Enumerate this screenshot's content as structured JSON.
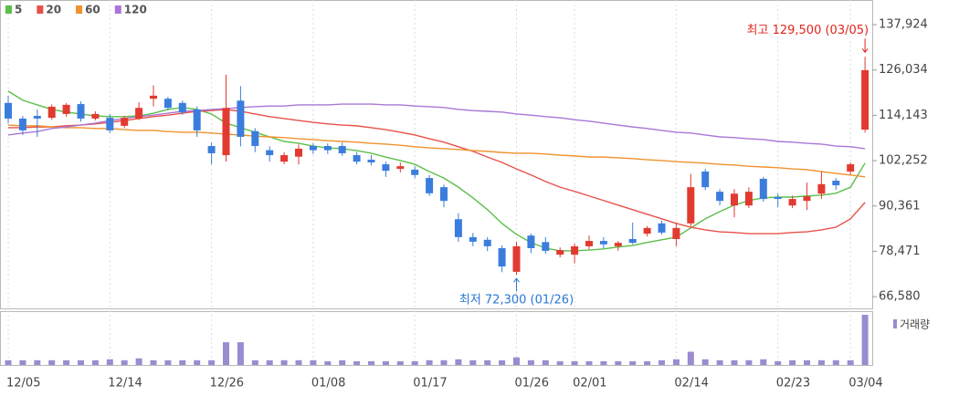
{
  "chart_data": {
    "type": "candlestick",
    "categories": [
      "12/05",
      null,
      null,
      null,
      null,
      null,
      null,
      "12/14",
      null,
      null,
      null,
      null,
      null,
      null,
      "12/26",
      null,
      null,
      null,
      null,
      null,
      null,
      "01/08",
      null,
      null,
      null,
      null,
      null,
      null,
      "01/17",
      null,
      null,
      null,
      null,
      null,
      null,
      "01/26",
      null,
      null,
      null,
      "02/01",
      null,
      null,
      null,
      null,
      null,
      null,
      "02/14",
      null,
      null,
      null,
      null,
      null,
      null,
      "02/23",
      null,
      null,
      null,
      null,
      "03/04",
      null
    ],
    "open": [
      117400,
      113300,
      114000,
      113500,
      114500,
      117100,
      113300,
      113500,
      111400,
      113300,
      118500,
      118500,
      117400,
      115700,
      106100,
      103700,
      118000,
      110000,
      105000,
      102000,
      103300,
      106100,
      106100,
      106100,
      103700,
      102500,
      101300,
      100100,
      99900,
      97700,
      95300,
      86900,
      82200,
      81500,
      79300,
      73100,
      82600,
      80900,
      77600,
      77600,
      79800,
      81200,
      79800,
      81700,
      83100,
      85800,
      81700,
      85800,
      99400,
      94100,
      90500,
      90500,
      97500,
      92700,
      90500,
      91700,
      93600,
      97000,
      99400,
      110400
    ],
    "high": [
      119300,
      114000,
      115700,
      117000,
      117400,
      117800,
      115200,
      114500,
      114000,
      117600,
      122000,
      119000,
      118000,
      116500,
      107000,
      124800,
      121800,
      110800,
      106000,
      104500,
      106500,
      106800,
      106800,
      107000,
      104500,
      103700,
      102000,
      101800,
      100800,
      98500,
      96000,
      88500,
      83300,
      82200,
      80000,
      81000,
      83100,
      82200,
      79500,
      80500,
      82600,
      82200,
      81200,
      86000,
      85100,
      86500,
      86000,
      98800,
      100100,
      94800,
      94800,
      95300,
      98000,
      93600,
      93100,
      96500,
      99400,
      97700,
      101800,
      129500
    ],
    "low": [
      112100,
      109000,
      108500,
      113000,
      113800,
      112500,
      112800,
      109500,
      110800,
      112900,
      116500,
      115500,
      114300,
      108500,
      101300,
      102000,
      106000,
      104500,
      102000,
      101300,
      101300,
      104000,
      104000,
      103500,
      101300,
      101000,
      98000,
      99100,
      97700,
      93000,
      90000,
      81000,
      79800,
      78500,
      73000,
      72300,
      78000,
      77800,
      76900,
      75300,
      79000,
      79300,
      78600,
      80300,
      82400,
      82900,
      79800,
      85000,
      94500,
      90500,
      87400,
      89800,
      91500,
      90000,
      89800,
      89300,
      92200,
      94600,
      98700,
      109600
    ],
    "close": [
      113300,
      110200,
      113300,
      116400,
      116900,
      113300,
      114500,
      110200,
      113500,
      116100,
      119300,
      116100,
      114900,
      110200,
      104200,
      116100,
      108500,
      106100,
      103700,
      103700,
      105400,
      105000,
      105000,
      104200,
      102000,
      101800,
      99600,
      100800,
      98500,
      93700,
      91700,
      82200,
      81000,
      79800,
      74500,
      79800,
      79300,
      78600,
      78800,
      79800,
      81200,
      80300,
      80700,
      80700,
      84600,
      83400,
      84600,
      95300,
      95300,
      91700,
      93600,
      94100,
      92200,
      92200,
      92200,
      92900,
      96100,
      95800,
      101300,
      126000
    ],
    "volume": [
      5,
      5,
      5,
      5,
      5,
      5,
      5,
      6,
      5,
      7,
      5,
      5,
      5,
      5,
      5,
      24,
      24,
      5,
      5,
      5,
      5,
      5,
      4,
      5,
      4,
      4,
      4,
      4,
      4,
      5,
      5,
      6,
      5,
      5,
      5,
      8,
      5,
      5,
      4,
      4,
      4,
      4,
      4,
      4,
      4,
      5,
      6,
      14,
      6,
      5,
      5,
      5,
      6,
      4,
      5,
      5,
      5,
      5,
      5,
      53
    ],
    "series": [
      {
        "name": "5",
        "color": "#5cbf4a",
        "values": [
          120500,
          118100,
          116900,
          115700,
          115000,
          114500,
          114000,
          113800,
          113800,
          114000,
          114700,
          115700,
          116200,
          115700,
          114500,
          112100,
          110900,
          109700,
          108500,
          107300,
          106800,
          106100,
          105600,
          105400,
          104900,
          104200,
          103200,
          102300,
          101300,
          99400,
          97700,
          95300,
          92500,
          89400,
          85800,
          82900,
          80800,
          79300,
          78600,
          78600,
          78800,
          79100,
          79600,
          80000,
          80800,
          81500,
          82200,
          84600,
          87000,
          88900,
          90600,
          91800,
          92500,
          92700,
          92700,
          93000,
          93200,
          93700,
          95300,
          101600
        ]
      },
      {
        "name": "20",
        "color": "#e8514a",
        "values": [
          110900,
          110900,
          111100,
          111100,
          111400,
          111600,
          111900,
          112300,
          112800,
          113300,
          113800,
          114200,
          114700,
          115200,
          115400,
          115700,
          115200,
          114500,
          113800,
          113300,
          112800,
          112300,
          111900,
          111600,
          111400,
          110900,
          110400,
          109700,
          109000,
          108000,
          107100,
          105900,
          104700,
          103200,
          101800,
          100100,
          98500,
          96800,
          95300,
          94200,
          93000,
          91800,
          90600,
          89400,
          88200,
          87000,
          85800,
          84800,
          84100,
          83600,
          83400,
          83100,
          83100,
          83100,
          83400,
          83600,
          84100,
          84800,
          87000,
          91300
        ]
      },
      {
        "name": "60",
        "color": "#f0922e",
        "values": [
          111600,
          111400,
          111400,
          111100,
          110900,
          110900,
          110700,
          110700,
          110400,
          110200,
          110200,
          109900,
          109700,
          109700,
          109500,
          109200,
          109000,
          108700,
          108500,
          108300,
          108000,
          107800,
          107500,
          107300,
          107100,
          106800,
          106600,
          106300,
          105900,
          105600,
          105400,
          105200,
          104900,
          104700,
          104400,
          104200,
          104200,
          104000,
          103700,
          103500,
          103200,
          103200,
          103000,
          102800,
          102500,
          102300,
          102000,
          101800,
          101600,
          101300,
          101100,
          100800,
          100600,
          100400,
          100100,
          99900,
          99400,
          98900,
          98500,
          98000
        ]
      },
      {
        "name": "120",
        "color": "#a977d6",
        "values": [
          109000,
          109500,
          109900,
          110700,
          111100,
          111600,
          112100,
          112800,
          113300,
          113800,
          114200,
          114700,
          115200,
          115400,
          115700,
          115900,
          116200,
          116400,
          116600,
          116600,
          116900,
          116900,
          116900,
          117100,
          117100,
          117100,
          116900,
          116900,
          116600,
          116400,
          116200,
          115700,
          115400,
          115200,
          115000,
          114500,
          114200,
          113800,
          113500,
          113000,
          112600,
          112100,
          111600,
          111100,
          110700,
          110200,
          109700,
          109500,
          109000,
          108500,
          108300,
          108000,
          107800,
          107300,
          107100,
          106800,
          106600,
          106100,
          105900,
          105400
        ]
      }
    ],
    "ylim": [
      63500,
      144400
    ],
    "yticks": [
      {
        "value": 137924,
        "label": "137,924"
      },
      {
        "value": 126034,
        "label": "126,034"
      },
      {
        "value": 114143,
        "label": "114,143"
      },
      {
        "value": 102252,
        "label": "102,252"
      },
      {
        "value": 90361,
        "label": "90,361"
      },
      {
        "value": 78471,
        "label": "78,471"
      },
      {
        "value": 66580,
        "label": "66,580"
      }
    ],
    "high_label": "최고 129,500 (03/05)",
    "low_label": "최저 72,300 (01/26)",
    "volume_label": "거래량",
    "up_color": "#e23a30",
    "down_color": "#3b7ddd",
    "volume_color": "#9b8bd0",
    "high_label_color": "#e0241c",
    "low_label_color": "#2a78d4"
  }
}
